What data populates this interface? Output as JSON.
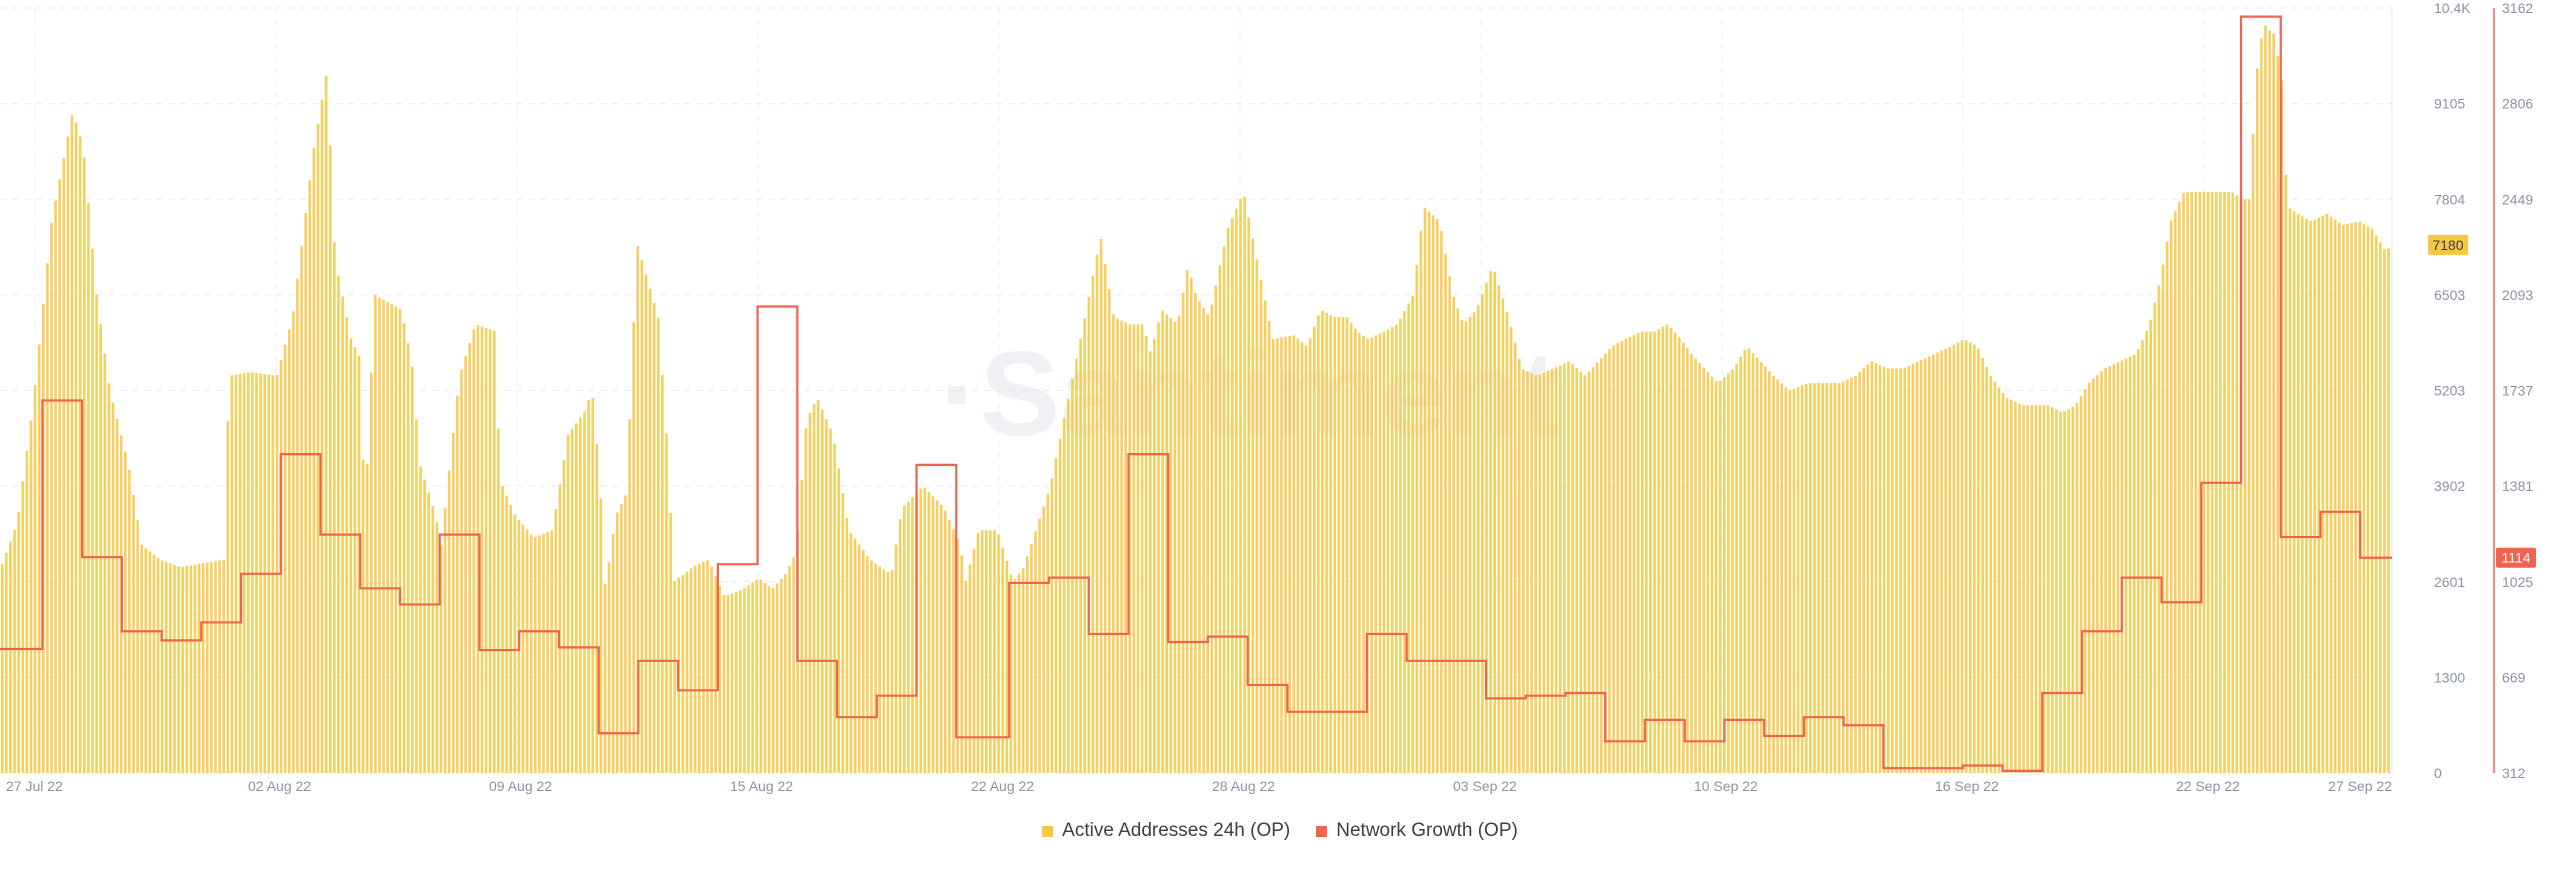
{
  "chart_data": {
    "type": "bar+line",
    "watermark": "·Santiment",
    "x_range": [
      "27 Jul 22",
      "27 Sep 22"
    ],
    "x_tick_labels": [
      "27 Jul 22",
      "02 Aug 22",
      "09 Aug 22",
      "15 Aug 22",
      "22 Aug 22",
      "28 Aug 22",
      "03 Sep 22",
      "10 Sep 22",
      "16 Sep 22",
      "22 Sep 22",
      "27 Sep 22"
    ],
    "left_axis": {
      "ticks": [
        "0",
        "1300",
        "2601",
        "3902",
        "5203",
        "6503",
        "7804",
        "9105",
        "10.4K"
      ],
      "min": 0,
      "max": 10400,
      "current_value": "7180",
      "current": 7180
    },
    "right_axis": {
      "ticks": [
        "312",
        "669",
        "1025",
        "1381",
        "1737",
        "2093",
        "2449",
        "2806",
        "3162"
      ],
      "min": 312,
      "max": 3162,
      "current_value": "1114",
      "current": 1114
    },
    "series": [
      {
        "name": "Active Addresses 24h (OP)",
        "type": "bar",
        "axis": "left",
        "color": "#f5c842",
        "anchors": [
          [
            0,
            2800
          ],
          [
            0.6,
            3400
          ],
          [
            1.2,
            5000
          ],
          [
            1.9,
            7500
          ],
          [
            2.7,
            9000
          ],
          [
            3.1,
            8500
          ],
          [
            3.6,
            6500
          ],
          [
            4.1,
            5200
          ],
          [
            4.8,
            4200
          ],
          [
            5.3,
            3100
          ],
          [
            6.0,
            2900
          ],
          [
            6.8,
            2800
          ],
          [
            7.6,
            2850
          ],
          [
            8.4,
            2900
          ],
          [
            8.6,
            5400
          ],
          [
            9.4,
            5450
          ],
          [
            10.4,
            5400
          ],
          [
            11.0,
            6200
          ],
          [
            11.8,
            8500
          ],
          [
            12.3,
            9550
          ],
          [
            12.6,
            7000
          ],
          [
            13.2,
            5900
          ],
          [
            13.6,
            5600
          ],
          [
            13.7,
            3300
          ],
          [
            14.1,
            6500
          ],
          [
            15.1,
            6300
          ],
          [
            15.5,
            5600
          ],
          [
            15.8,
            4200
          ],
          [
            16.4,
            3500
          ],
          [
            16.6,
            3100
          ],
          [
            17.3,
            5400
          ],
          [
            17.9,
            6100
          ],
          [
            18.7,
            6000
          ],
          [
            18.8,
            4000
          ],
          [
            19.4,
            3500
          ],
          [
            20.1,
            3200
          ],
          [
            20.8,
            3300
          ],
          [
            21.4,
            4600
          ],
          [
            22.0,
            4900
          ],
          [
            22.3,
            5200
          ],
          [
            22.6,
            4000
          ],
          [
            22.8,
            2500
          ],
          [
            23.2,
            3500
          ],
          [
            23.6,
            3800
          ],
          [
            24.0,
            7200
          ],
          [
            24.8,
            6200
          ],
          [
            25.1,
            4700
          ],
          [
            25.4,
            2600
          ],
          [
            26.1,
            2800
          ],
          [
            26.7,
            2900
          ],
          [
            27.3,
            2400
          ],
          [
            28.0,
            2500
          ],
          [
            28.6,
            2650
          ],
          [
            29.1,
            2500
          ],
          [
            29.6,
            2700
          ],
          [
            30.0,
            3000
          ],
          [
            30.4,
            4800
          ],
          [
            30.8,
            5100
          ],
          [
            31.4,
            4600
          ],
          [
            32.0,
            3300
          ],
          [
            32.8,
            2900
          ],
          [
            33.6,
            2700
          ],
          [
            34.0,
            3600
          ],
          [
            34.8,
            3900
          ],
          [
            35.6,
            3600
          ],
          [
            36.2,
            3100
          ],
          [
            36.4,
            2600
          ],
          [
            36.9,
            3300
          ],
          [
            37.6,
            3300
          ],
          [
            38.2,
            2600
          ],
          [
            38.6,
            2800
          ],
          [
            39.6,
            3900
          ],
          [
            40.8,
            6000
          ],
          [
            41.5,
            7300
          ],
          [
            42.0,
            6200
          ],
          [
            42.6,
            6100
          ],
          [
            43.1,
            6100
          ],
          [
            43.4,
            5700
          ],
          [
            43.8,
            6300
          ],
          [
            44.4,
            6100
          ],
          [
            44.8,
            6900
          ],
          [
            45.1,
            6500
          ],
          [
            45.6,
            6200
          ],
          [
            46.3,
            7400
          ],
          [
            46.9,
            7900
          ],
          [
            47.5,
            6800
          ],
          [
            48.0,
            5900
          ],
          [
            48.8,
            5950
          ],
          [
            49.3,
            5800
          ],
          [
            49.8,
            6300
          ],
          [
            50.3,
            6200
          ],
          [
            50.8,
            6200
          ],
          [
            51.2,
            6000
          ],
          [
            51.6,
            5900
          ],
          [
            52.2,
            6000
          ],
          [
            52.7,
            6100
          ],
          [
            53.3,
            6500
          ],
          [
            53.7,
            7700
          ],
          [
            54.3,
            7500
          ],
          [
            54.8,
            6500
          ],
          [
            55.2,
            6100
          ],
          [
            55.7,
            6300
          ],
          [
            56.3,
            6900
          ],
          [
            56.9,
            6200
          ],
          [
            57.4,
            5500
          ],
          [
            58.0,
            5400
          ],
          [
            58.6,
            5500
          ],
          [
            59.2,
            5600
          ],
          [
            59.8,
            5400
          ],
          [
            60.3,
            5600
          ],
          [
            60.8,
            5800
          ],
          [
            61.3,
            5900
          ],
          [
            61.9,
            6000
          ],
          [
            62.4,
            6000
          ],
          [
            62.9,
            6100
          ],
          [
            63.4,
            5900
          ],
          [
            63.8,
            5700
          ],
          [
            64.3,
            5500
          ],
          [
            64.8,
            5300
          ],
          [
            65.4,
            5500
          ],
          [
            65.9,
            5800
          ],
          [
            66.4,
            5600
          ],
          [
            66.9,
            5400
          ],
          [
            67.5,
            5200
          ],
          [
            68.2,
            5300
          ],
          [
            68.8,
            5300
          ],
          [
            69.4,
            5300
          ],
          [
            70.0,
            5400
          ],
          [
            70.6,
            5600
          ],
          [
            71.2,
            5500
          ],
          [
            71.8,
            5500
          ],
          [
            72.4,
            5600
          ],
          [
            73.0,
            5700
          ],
          [
            73.6,
            5800
          ],
          [
            74.1,
            5900
          ],
          [
            74.6,
            5800
          ],
          [
            75.1,
            5400
          ],
          [
            75.7,
            5100
          ],
          [
            76.3,
            5000
          ],
          [
            76.8,
            5000
          ],
          [
            77.3,
            5000
          ],
          [
            77.8,
            4900
          ],
          [
            78.3,
            5000
          ],
          [
            78.8,
            5300
          ],
          [
            79.4,
            5500
          ],
          [
            80.0,
            5600
          ],
          [
            80.6,
            5700
          ],
          [
            81.1,
            6100
          ],
          [
            81.5,
            6700
          ],
          [
            81.9,
            7500
          ],
          [
            82.4,
            7900
          ],
          [
            82.9,
            7900
          ],
          [
            83.3,
            7900
          ],
          [
            83.8,
            7900
          ],
          [
            84.2,
            7900
          ],
          [
            84.6,
            7800
          ],
          [
            84.9,
            7800
          ],
          [
            85.1,
            9400
          ],
          [
            85.4,
            10200
          ],
          [
            85.6,
            10100
          ],
          [
            85.8,
            10050
          ],
          [
            86.1,
            9400
          ],
          [
            86.3,
            7700
          ],
          [
            86.7,
            7600
          ],
          [
            87.2,
            7500
          ],
          [
            87.8,
            7600
          ],
          [
            88.4,
            7450
          ],
          [
            89.0,
            7500
          ],
          [
            89.5,
            7400
          ],
          [
            90.0,
            7100
          ],
          [
            90.3,
            7180
          ]
        ]
      },
      {
        "name": "Network Growth (OP)",
        "type": "line",
        "axis": "right",
        "color": "#f0634f",
        "steps": [
          [
            0,
            774
          ],
          [
            1.6,
            1700
          ],
          [
            3.1,
            1116
          ],
          [
            4.6,
            840
          ],
          [
            6.1,
            806
          ],
          [
            7.6,
            873
          ],
          [
            9.1,
            1054
          ],
          [
            10.6,
            1500
          ],
          [
            12.1,
            1200
          ],
          [
            13.6,
            1000
          ],
          [
            15.1,
            940
          ],
          [
            16.6,
            1200
          ],
          [
            18.1,
            770
          ],
          [
            19.6,
            840
          ],
          [
            21.1,
            780
          ],
          [
            22.6,
            460
          ],
          [
            24.1,
            730
          ],
          [
            25.6,
            620
          ],
          [
            27.1,
            1090
          ],
          [
            28.6,
            2050
          ],
          [
            30.1,
            730
          ],
          [
            31.6,
            520
          ],
          [
            33.1,
            600
          ],
          [
            34.6,
            1460
          ],
          [
            36.1,
            445
          ],
          [
            38.1,
            1020
          ],
          [
            39.6,
            1040
          ],
          [
            41.1,
            830
          ],
          [
            42.6,
            1500
          ],
          [
            44.1,
            800
          ],
          [
            45.6,
            820
          ],
          [
            47.1,
            640
          ],
          [
            48.6,
            540
          ],
          [
            50.1,
            540
          ],
          [
            51.6,
            830
          ],
          [
            53.1,
            730
          ],
          [
            54.6,
            730
          ],
          [
            56.1,
            590
          ],
          [
            57.6,
            600
          ],
          [
            59.1,
            610
          ],
          [
            60.6,
            430
          ],
          [
            62.1,
            510
          ],
          [
            63.6,
            430
          ],
          [
            65.1,
            510
          ],
          [
            66.6,
            450
          ],
          [
            68.1,
            520
          ],
          [
            69.6,
            490
          ],
          [
            71.1,
            330
          ],
          [
            72.6,
            330
          ],
          [
            74.1,
            340
          ],
          [
            75.6,
            320
          ],
          [
            77.1,
            610
          ],
          [
            78.6,
            840
          ],
          [
            80.1,
            1040
          ],
          [
            81.6,
            948
          ],
          [
            83.1,
            1393
          ],
          [
            84.6,
            3130
          ],
          [
            86.1,
            1191
          ],
          [
            87.6,
            1285
          ],
          [
            89.1,
            1114
          ],
          [
            90.3,
            1114
          ]
        ]
      }
    ]
  }
}
